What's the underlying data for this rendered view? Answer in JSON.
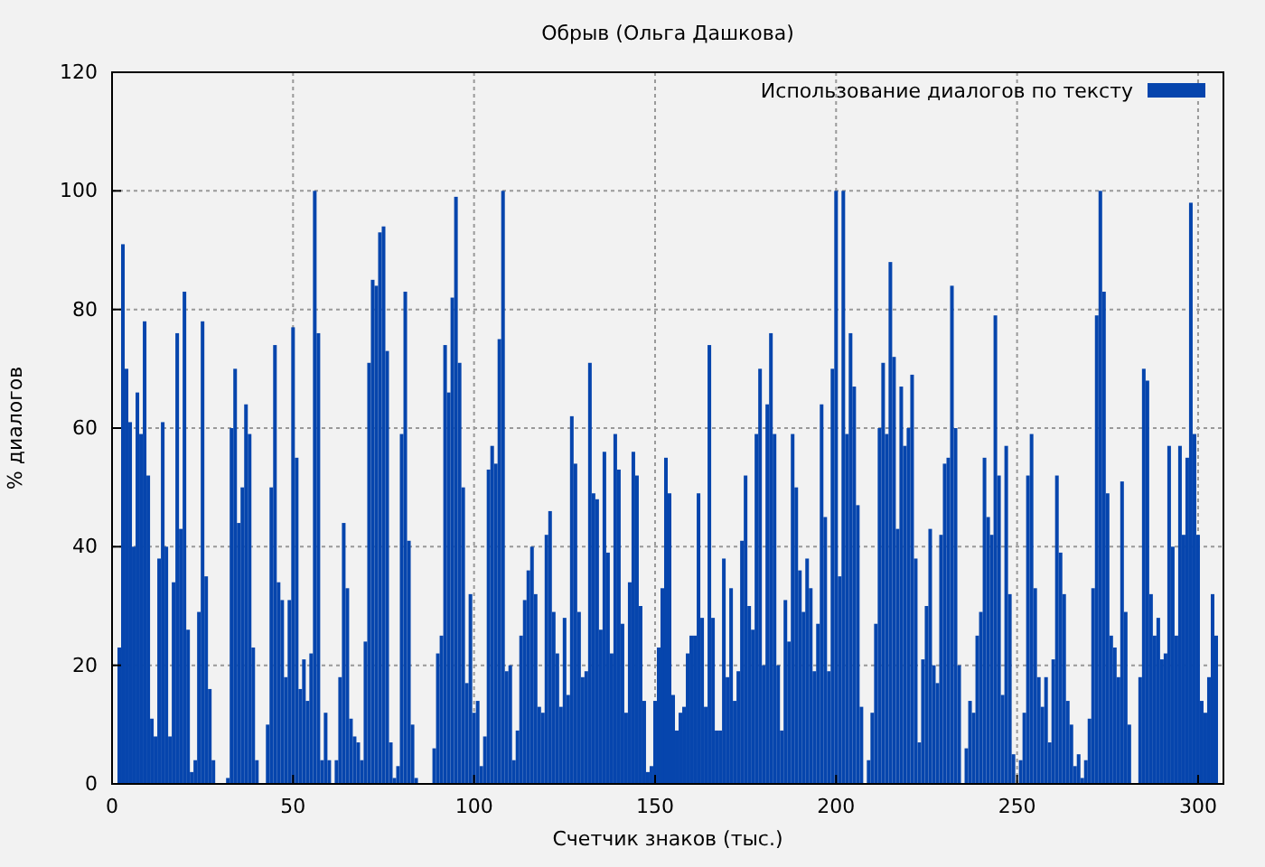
{
  "chart_data": {
    "type": "bar",
    "title": "Обрыв (Ольга Дашкова)",
    "xlabel": "Счетчик знаков (тыс.)",
    "ylabel": "% диалогов",
    "x": [
      1,
      2,
      3,
      4,
      5,
      6,
      7,
      8,
      9,
      10,
      11,
      12,
      13,
      14,
      15,
      16,
      17,
      18,
      19,
      20,
      21,
      22,
      23,
      24,
      25,
      26,
      27,
      28,
      29,
      30,
      31,
      32,
      33,
      34,
      35,
      36,
      37,
      38,
      39,
      40,
      41,
      42,
      43,
      44,
      45,
      46,
      47,
      48,
      49,
      50,
      51,
      52,
      53,
      54,
      55,
      56,
      57,
      58,
      59,
      60,
      61,
      62,
      63,
      64,
      65,
      66,
      67,
      68,
      69,
      70,
      71,
      72,
      73,
      74,
      75,
      76,
      77,
      78,
      79,
      80,
      81,
      82,
      83,
      84,
      85,
      86,
      87,
      88,
      89,
      90,
      91,
      92,
      93,
      94,
      95,
      96,
      97,
      98,
      99,
      100,
      101,
      102,
      103,
      104,
      105,
      106,
      107,
      108,
      109,
      110,
      111,
      112,
      113,
      114,
      115,
      116,
      117,
      118,
      119,
      120,
      121,
      122,
      123,
      124,
      125,
      126,
      127,
      128,
      129,
      130,
      131,
      132,
      133,
      134,
      135,
      136,
      137,
      138,
      139,
      140,
      141,
      142,
      143,
      144,
      145,
      146,
      147,
      148,
      149,
      150,
      151,
      152,
      153,
      154,
      155,
      156,
      157,
      158,
      159,
      160,
      161,
      162,
      163,
      164,
      165,
      166,
      167,
      168,
      169,
      170,
      171,
      172,
      173,
      174,
      175,
      176,
      177,
      178,
      179,
      180,
      181,
      182,
      183,
      184,
      185,
      186,
      187,
      188,
      189,
      190,
      191,
      192,
      193,
      194,
      195,
      196,
      197,
      198,
      199,
      200,
      201,
      202,
      203,
      204,
      205,
      206,
      207,
      208,
      209,
      210,
      211,
      212,
      213,
      214,
      215,
      216,
      217,
      218,
      219,
      220,
      221,
      222,
      223,
      224,
      225,
      226,
      227,
      228,
      229,
      230,
      231,
      232,
      233,
      234,
      235,
      236,
      237,
      238,
      239,
      240,
      241,
      242,
      243,
      244,
      245,
      246,
      247,
      248,
      249,
      250,
      251,
      252,
      253,
      254,
      255,
      256,
      257,
      258,
      259,
      260,
      261,
      262,
      263,
      264,
      265,
      266,
      267,
      268,
      269,
      270,
      271,
      272,
      273,
      274,
      275,
      276,
      277,
      278,
      279,
      280,
      281,
      282,
      283,
      284,
      285,
      286,
      287,
      288,
      289,
      290,
      291,
      292,
      293,
      294,
      295,
      296,
      297,
      298,
      299,
      300,
      301,
      302,
      303,
      304,
      305
    ],
    "series": [
      {
        "name": "Использование диалогов по тексту",
        "color": "#0645ad",
        "values": [
          0,
          23,
          91,
          70,
          61,
          40,
          66,
          59,
          78,
          52,
          11,
          8,
          38,
          61,
          40,
          8,
          34,
          76,
          43,
          83,
          26,
          2,
          4,
          29,
          78,
          35,
          16,
          4,
          0,
          0,
          0,
          1,
          60,
          70,
          44,
          50,
          64,
          59,
          23,
          4,
          0,
          0,
          10,
          50,
          74,
          34,
          31,
          18,
          31,
          77,
          55,
          16,
          21,
          14,
          22,
          100,
          76,
          4,
          12,
          4,
          0,
          4,
          18,
          44,
          33,
          11,
          8,
          7,
          4,
          24,
          71,
          85,
          84,
          93,
          94,
          73,
          7,
          1,
          3,
          59,
          83,
          41,
          10,
          1,
          0,
          0,
          0,
          0,
          6,
          22,
          25,
          74,
          66,
          82,
          99,
          71,
          50,
          17,
          32,
          12,
          14,
          3,
          8,
          53,
          57,
          54,
          75,
          100,
          19,
          20,
          4,
          9,
          25,
          31,
          36,
          40,
          32,
          13,
          12,
          42,
          46,
          29,
          22,
          13,
          28,
          15,
          62,
          54,
          29,
          18,
          19,
          71,
          49,
          48,
          26,
          56,
          39,
          22,
          59,
          53,
          27,
          12,
          34,
          56,
          52,
          30,
          14,
          2,
          3,
          14,
          23,
          33,
          55,
          49,
          15,
          9,
          12,
          13,
          22,
          25,
          25,
          49,
          28,
          13,
          74,
          28,
          9,
          9,
          38,
          18,
          33,
          14,
          19,
          41,
          52,
          30,
          26,
          59,
          70,
          20,
          64,
          76,
          59,
          20,
          9,
          31,
          24,
          59,
          50,
          36,
          29,
          38,
          33,
          19,
          27,
          64,
          45,
          19,
          70,
          100,
          35,
          100,
          59,
          76,
          67,
          47,
          13,
          0,
          4,
          12,
          27,
          60,
          71,
          59,
          88,
          72,
          43,
          67,
          57,
          60,
          69,
          38,
          7,
          21,
          30,
          43,
          20,
          17,
          42,
          54,
          55,
          84,
          60,
          20,
          0,
          6,
          14,
          12,
          25,
          29,
          55,
          45,
          42,
          79,
          52,
          15,
          57,
          32,
          5,
          0,
          4,
          12,
          52,
          59,
          33,
          18,
          13,
          18,
          7,
          21,
          52,
          39,
          32,
          14,
          10,
          3,
          5,
          1,
          4,
          11,
          33,
          79,
          100,
          83,
          49,
          25,
          23,
          18,
          51,
          29,
          10,
          0,
          0,
          18,
          70,
          68,
          32,
          25,
          28,
          21,
          22,
          57,
          40,
          25,
          57,
          42,
          55,
          98,
          59,
          42,
          14,
          12,
          18,
          32,
          25
        ]
      }
    ],
    "xlim": [
      0,
      307
    ],
    "ylim": [
      0,
      120
    ],
    "xticks": [
      0,
      50,
      100,
      150,
      200,
      250,
      300
    ],
    "yticks": [
      0,
      20,
      40,
      60,
      80,
      100,
      120
    ],
    "grid": true,
    "legend": "top right"
  }
}
